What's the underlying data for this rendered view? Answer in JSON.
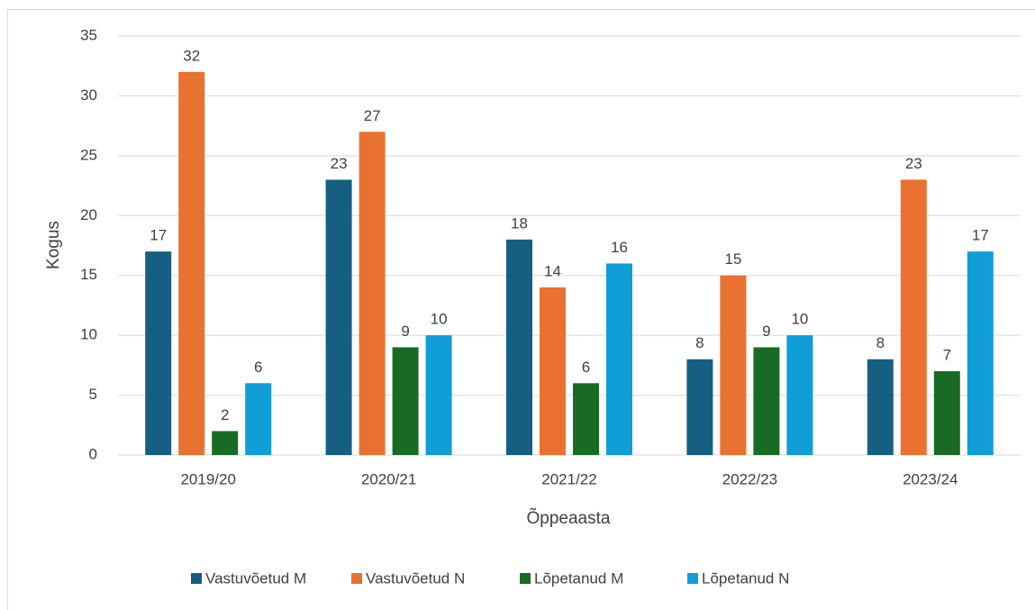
{
  "chart_data": {
    "type": "bar",
    "x_label": "Õppeaasta",
    "y_label": "Kogus",
    "categories": [
      "2019/20",
      "2020/21",
      "2021/22",
      "2022/23",
      "2023/24"
    ],
    "series": [
      {
        "name": "Vastuvõetud M",
        "color": "#156082",
        "values": [
          17,
          23,
          18,
          8,
          8
        ]
      },
      {
        "name": "Vastuvõetud N",
        "color": "#e97132",
        "values": [
          32,
          27,
          14,
          15,
          23
        ]
      },
      {
        "name": "Lõpetanud M",
        "color": "#196b24",
        "values": [
          2,
          9,
          6,
          9,
          7
        ]
      },
      {
        "name": "Lõpetanud N",
        "color": "#0f9ed5",
        "values": [
          6,
          10,
          16,
          10,
          17
        ]
      }
    ],
    "ylim": [
      0,
      35
    ],
    "yticks": [
      0,
      5,
      10,
      15,
      20,
      25,
      30,
      35
    ],
    "grid": true,
    "legend": "bottom"
  }
}
